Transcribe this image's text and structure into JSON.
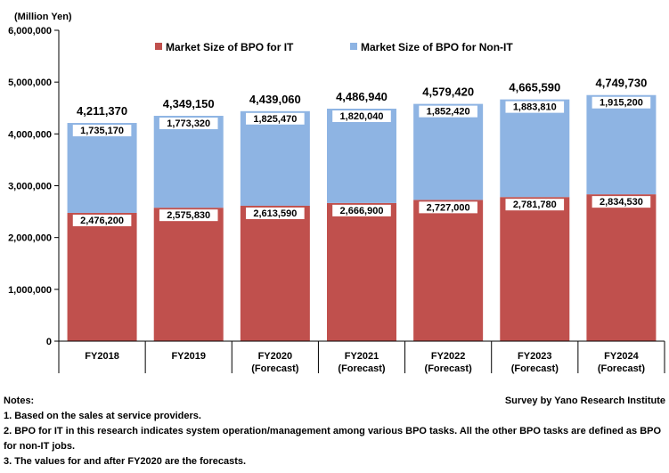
{
  "colors": {
    "it": "#c0504d",
    "non_it": "#8eb4e3",
    "axis": "#000000",
    "grid": "#ffffff"
  },
  "chart_data": {
    "type": "bar",
    "stacked": true,
    "unit_label": "(Million Yen)",
    "categories": [
      [
        "FY2018"
      ],
      [
        "FY2019"
      ],
      [
        "FY2020",
        "(Forecast)"
      ],
      [
        "FY2021",
        "(Forecast)"
      ],
      [
        "FY2022",
        "(Forecast)"
      ],
      [
        "FY2023",
        "(Forecast)"
      ],
      [
        "FY2024",
        "(Forecast)"
      ]
    ],
    "series": [
      {
        "name": "Market Size of BPO for IT",
        "color_key": "it",
        "values": [
          2476200,
          2575830,
          2613590,
          2666900,
          2727000,
          2781780,
          2834530
        ],
        "labels": [
          "2,476,200",
          "2,575,830",
          "2,613,590",
          "2,666,900",
          "2,727,000",
          "2,781,780",
          "2,834,530"
        ]
      },
      {
        "name": "Market Size of BPO for Non-IT",
        "color_key": "non_it",
        "values": [
          1735170,
          1773320,
          1825470,
          1820040,
          1852420,
          1883810,
          1915200
        ],
        "labels": [
          "1,735,170",
          "1,773,320",
          "1,825,470",
          "1,820,040",
          "1,852,420",
          "1,883,810",
          "1,915,200"
        ]
      }
    ],
    "totals": [
      4211370,
      4349150,
      4439060,
      4486940,
      4579420,
      4665590,
      4749730
    ],
    "total_labels": [
      "4,211,370",
      "4,349,150",
      "4,439,060",
      "4,486,940",
      "4,579,420",
      "4,665,590",
      "4,749,730"
    ],
    "ylim": [
      0,
      6000000
    ],
    "yticks": [
      0,
      1000000,
      2000000,
      3000000,
      4000000,
      5000000,
      6000000
    ],
    "ytick_labels": [
      "0",
      "1,000,000",
      "2,000,000",
      "3,000,000",
      "4,000,000",
      "5,000,000",
      "6,000,000"
    ],
    "legend_position": "top"
  },
  "notes": {
    "heading": "Notes:",
    "source": "Survey by Yano Research Institute",
    "items": [
      "1. Based on the sales at service providers.",
      "2. BPO for IT in this research indicates system operation/management among various BPO tasks. All the other BPO tasks are defined as BPO for non-IT jobs.",
      "3. The values for and after FY2020 are the forecasts."
    ]
  }
}
